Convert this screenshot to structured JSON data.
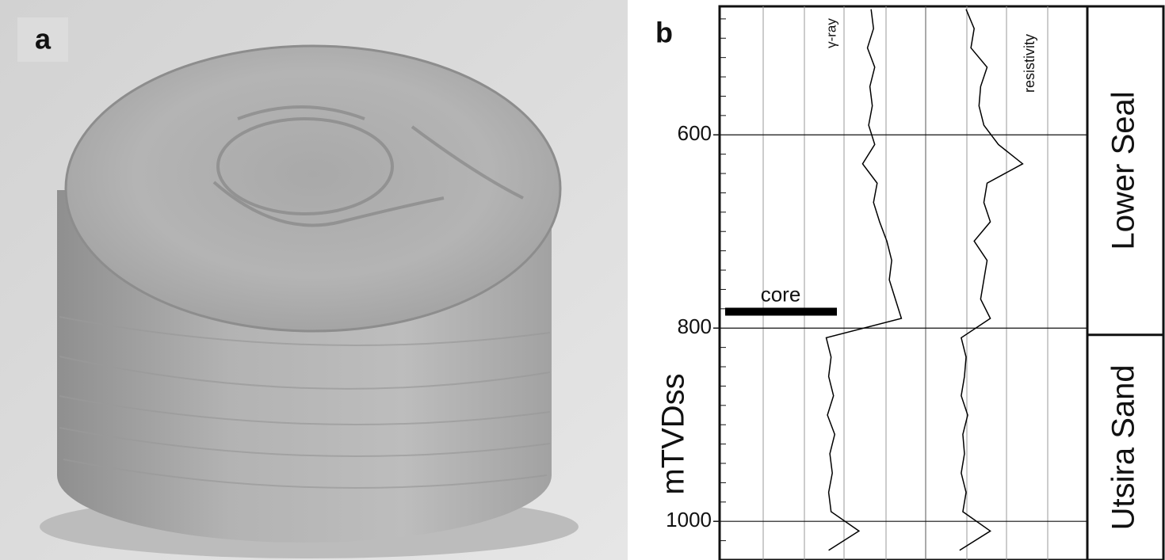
{
  "photo_label": "a",
  "chart_data": {
    "type": "line",
    "panel_label": "b",
    "orientation": "vertical",
    "y_label": "mTVDss",
    "ylim": [
      467,
      1040
    ],
    "yticks": [
      600,
      800,
      1000
    ],
    "minor_yticks": [
      480,
      500,
      520,
      540,
      560,
      580,
      620,
      640,
      660,
      680,
      700,
      720,
      740,
      760,
      780,
      820,
      840,
      860,
      880,
      900,
      920,
      940,
      960,
      980,
      1020,
      1040
    ],
    "grid": true,
    "x": [
      470,
      490,
      510,
      530,
      550,
      570,
      590,
      610,
      630,
      650,
      670,
      690,
      710,
      730,
      750,
      770,
      790,
      810,
      830,
      850,
      870,
      890,
      910,
      930,
      950,
      970,
      990,
      1010,
      1030
    ],
    "series": [
      {
        "name": "γ-ray",
        "color": "#000000",
        "values": [
          55,
          57,
          52,
          58,
          54,
          56,
          53,
          58,
          48,
          60,
          57,
          62,
          68,
          72,
          70,
          75,
          80,
          18,
          22,
          20,
          24,
          19,
          25,
          21,
          23,
          20,
          22,
          45,
          20
        ]
      },
      {
        "name": "resistivity",
        "color": "#000000",
        "values": [
          25,
          30,
          28,
          38,
          34,
          33,
          36,
          45,
          60,
          38,
          36,
          40,
          30,
          38,
          36,
          34,
          40,
          22,
          25,
          24,
          22,
          26,
          23,
          24,
          22,
          25,
          23,
          40,
          21
        ]
      }
    ],
    "core": {
      "label": "core",
      "depth": 783
    },
    "formation_boundary": 807,
    "formations": [
      "Lower Seal",
      "Utsira Sand"
    ]
  }
}
